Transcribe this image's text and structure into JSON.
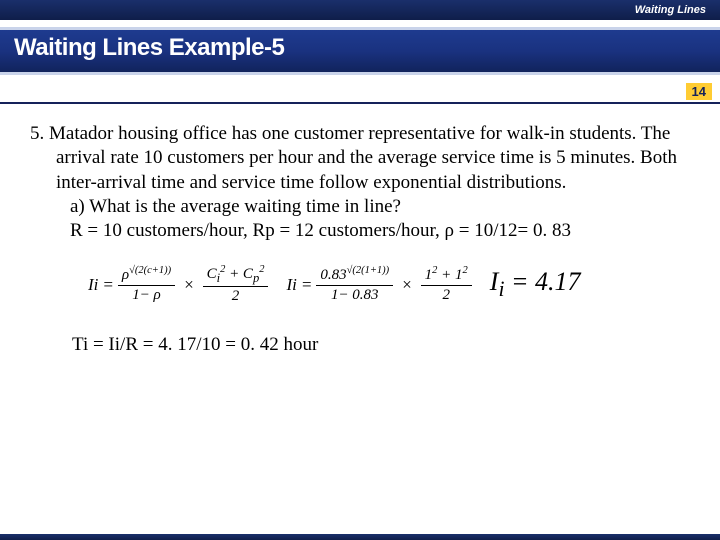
{
  "colors": {
    "brand_dark": "#15225a",
    "brand_grad_top": "#1e3b8f",
    "brand_grad_bottom": "#11235c",
    "accent": "#ffcc33"
  },
  "header": {
    "context": "Waiting Lines",
    "title": "Waiting Lines Example-5",
    "page_number": "14"
  },
  "body": {
    "problem_text": "5. Matador housing office has one customer representative for walk-in students. The arrival rate 10 customers per hour and the average service time is 5 minutes. Both inter-arrival time and service time follow exponential distributions.",
    "question_a": "a) What is the average waiting time in line?",
    "given": "R = 10 customers/hour, Rp = 12 customers/hour, ρ = 10/12= 0. 83",
    "formula_generic": {
      "lhs": "Ii",
      "term1_num": "ρ^{√(2(c+1))}",
      "term1_den": "1− ρ",
      "term2_num": "C_i^2 + C_p^2",
      "term2_den": "2"
    },
    "formula_numeric": {
      "lhs": "Ii",
      "term1_num": "0.83^{√(2(1+1))}",
      "term1_den": "1− 0.83",
      "term2_num": "1^2 + 1^2",
      "term2_den": "2"
    },
    "result": "I_i = 4.17",
    "final": "Ti = Ii/R = 4. 17/10 = 0. 42 hour"
  }
}
